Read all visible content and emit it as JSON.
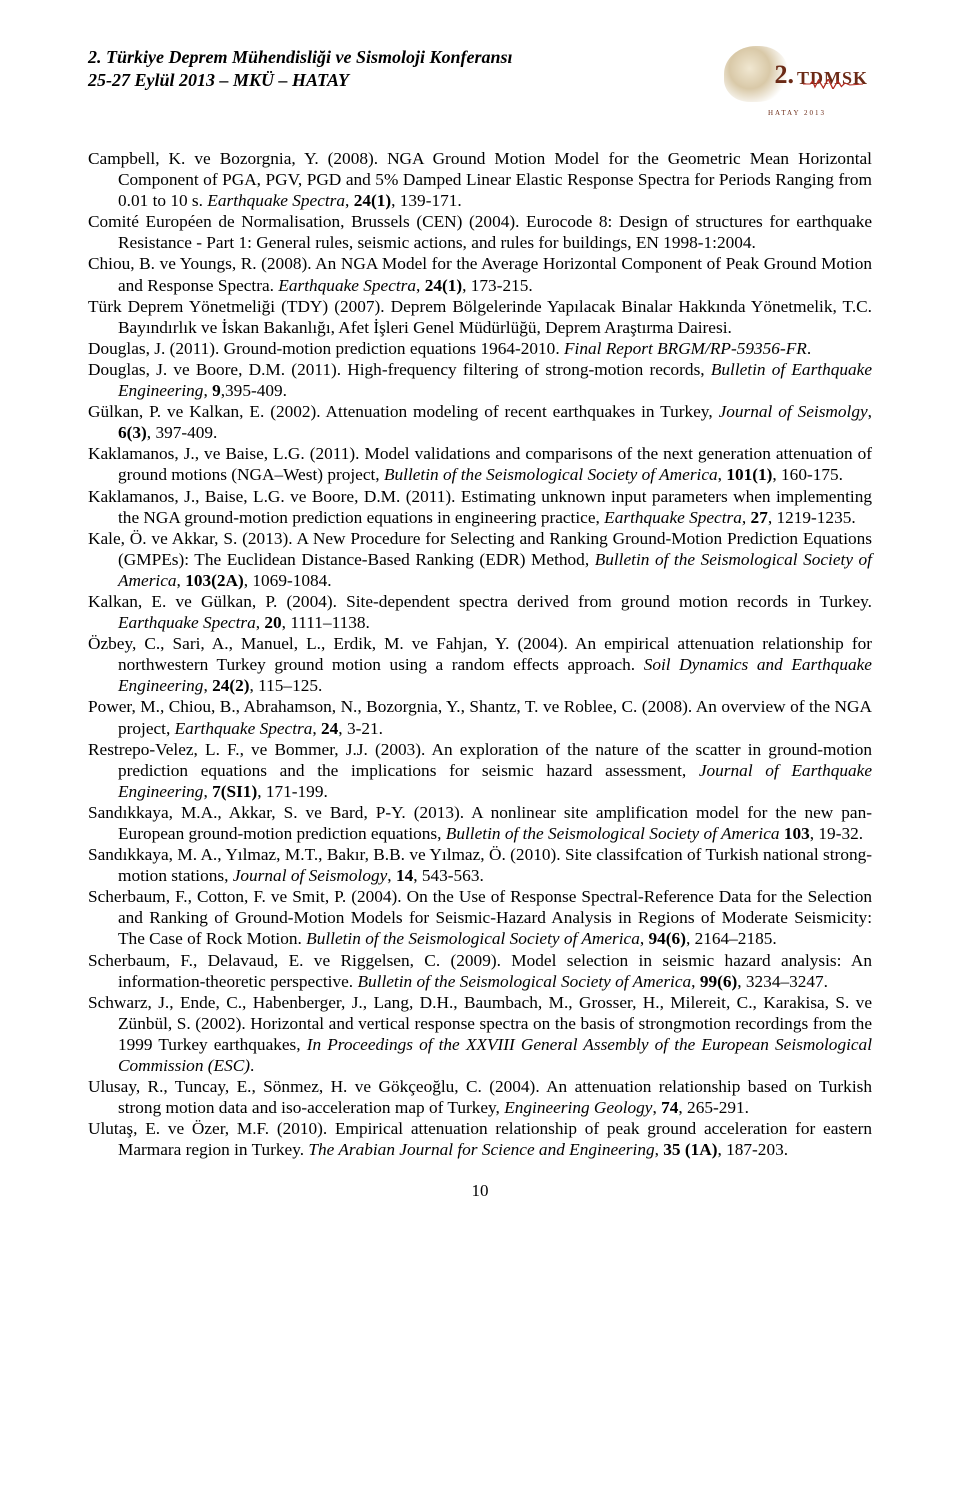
{
  "header": {
    "line1": "2. Türkiye Deprem Mühendisliği ve Sismoloji Konferansı",
    "line2": "25-27 Eylül 2013 – MKÜ – HATAY",
    "logo_number": "2.",
    "logo_label": "TDMSK",
    "logo_footer1": "",
    "logo_footer2": "HATAY 2013",
    "zig_color": "#b3281e"
  },
  "refs": [
    "Campbell, K. ve Bozorgnia, Y. (2008). NGA Ground Motion Model for the Geometric Mean Horizontal Component of PGA, PGV, PGD and 5% Damped Linear Elastic Response Spectra for Periods Ranging from 0.01 to 10 s. <em>Earthquake Spectra</em>, <strong>24(1)</strong>, 139-171.",
    "Comité Européen de Normalisation, Brussels (CEN) (2004). Eurocode 8: Design of structures for earthquake Resistance - Part 1: General rules, seismic actions, and rules for buildings, EN 1998-1:2004.",
    "Chiou, B. ve Youngs, R. (2008). An NGA Model for the Average Horizontal Component of Peak Ground Motion and Response Spectra. <em>Earthquake Spectra</em>, <strong>24(1)</strong>, 173-215.",
    "Türk Deprem Yönetmeliği (TDY) (2007). Deprem Bölgelerinde Yapılacak Binalar Hakkında Yönetmelik, T.C. Bayındırlık ve İskan Bakanlığı, Afet İşleri Genel Müdürlüğü, Deprem Araştırma Dairesi.",
    "Douglas, J. (2011). Ground-motion prediction equations 1964-2010. <em>Final Report BRGM/RP-59356-FR</em>.",
    "Douglas, J. ve Boore, D.M. (2011). High-frequency filtering of strong-motion records, <em>Bulletin of Earthquake Engineering</em>, <strong>9</strong>,395-409.",
    "Gülkan, P. ve Kalkan, E. (2002). Attenuation modeling of recent earthquakes in Turkey, <em>Journal of Seismolgy</em>, <strong>6(3)</strong>, 397-409.",
    "Kaklamanos, J., ve Baise, L.G. (2011). Model validations and comparisons of the next generation attenuation of ground motions (NGA–West) project, <em>Bulletin of the Seismological Society of America</em>, <strong>101(1)</strong>, 160-175.",
    "Kaklamanos, J., Baise, L.G. ve Boore, D.M. (2011). Estimating unknown input parameters when implementing the NGA ground-motion prediction equations in engineering practice, <em>Earthquake Spectra</em>, <strong>27</strong>, 1219-1235.",
    "Kale, Ö. ve Akkar, S. (2013). A New Procedure for Selecting and Ranking Ground-Motion Prediction Equations (GMPEs): The Euclidean Distance-Based Ranking (EDR) Method, <em>Bulletin of the Seismological Society of America</em>, <strong>103(2A)</strong>, 1069-1084.",
    "Kalkan, E. ve Gülkan, P. (2004). Site-dependent spectra derived from ground motion records in Turkey. <em>Earthquake Spectra</em>, <strong>20</strong>, 1111–1138.",
    "Özbey, C., Sari, A., Manuel, L., Erdik, M. ve Fahjan, Y. (2004). An empirical attenuation relationship for northwestern Turkey ground motion using a random effects approach. <em>Soil Dynamics and Earthquake Engineering</em>, <strong>24(2)</strong>, 115–125.",
    "Power, M., Chiou, B., Abrahamson, N., Bozorgnia, Y., Shantz, T. ve Roblee, C. (2008). An overview of the NGA project, <em>Earthquake Spectra</em>, <strong>24</strong>, 3-21.",
    "Restrepo-Velez, L. F., ve Bommer, J.J. (2003). An exploration of the nature of the scatter in ground-motion prediction equations and the implications for seismic hazard assessment, <em>Journal of Earthquake Engineering</em>, <strong>7(SI1)</strong>, 171-199.",
    "Sandıkkaya, M.A., Akkar, S. ve Bard, P-Y. (2013). A nonlinear site amplification model for the new pan-European ground-motion prediction equations, <em>Bulletin of the Seismological Society of America</em> <strong>103</strong>, 19-32.",
    "Sandıkkaya, M. A., Yılmaz, M.T., Bakır, B.B. ve Yılmaz, Ö. (2010). Site classifcation of Turkish national strong-motion stations, <em>Journal of  Seismology</em>, <strong>14</strong>, 543-563.",
    "Scherbaum, F., Cotton, F. ve Smit, P. (2004). On the Use of Response Spectral-Reference Data for the Selection and Ranking of Ground-Motion Models for Seismic-Hazard Analysis in Regions of Moderate Seismicity: The Case of Rock Motion. <em>Bulletin of the Seismological Society of America</em>, <strong>94(6)</strong>, 2164–2185.",
    "Scherbaum, F., Delavaud, E. ve Riggelsen, C. (2009). Model selection in seismic hazard analysis: An information-theoretic perspective.  <em>Bulletin of the Seismological Society of America</em>, <strong>99(6)</strong>, 3234–3247.",
    "Schwarz, J., Ende, C., Habenberger, J., Lang, D.H., Baumbach, M., Grosser, H., Milereit, C., Karakisa, S. ve Zünbül, S. (2002). Horizontal and vertical response spectra on the basis of strongmotion recordings from the 1999 Turkey earthquakes, <em>In Proceedings of the XXVIII General Assembly of the European Seismological Commission (ESC)</em>.",
    "Ulusay, R., Tuncay, E., Sönmez, H. ve Gökçeoğlu, C. (2004). An attenuation relationship based on Turkish strong motion data and iso-acceleration map of Turkey, <em>Engineering Geology</em>, <strong>74</strong>, 265-291.",
    "Ulutaş, E. ve Özer, M.F. (2010). Empirical attenuation relationship of peak ground acceleration for eastern Marmara region in Turkey. <em>The Arabian Journal for Science and Engineering</em>, <strong>35 (1A)</strong>, 187-203."
  ],
  "page_number": "10"
}
